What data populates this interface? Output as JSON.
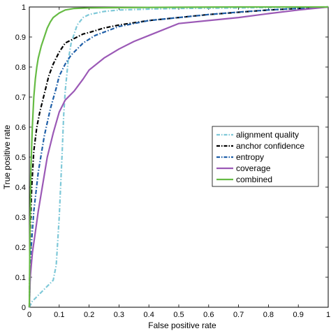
{
  "chart_data": {
    "type": "line",
    "title": "",
    "xlabel": "False positive rate",
    "ylabel": "True positive rate",
    "xlim": [
      0,
      1
    ],
    "ylim": [
      0,
      1
    ],
    "xticks": [
      "0",
      "0.1",
      "0.2",
      "0.3",
      "0.4",
      "0.5",
      "0.6",
      "0.7",
      "0.8",
      "0.9",
      "1"
    ],
    "yticks": [
      "0",
      "0.1",
      "0.2",
      "0.3",
      "0.4",
      "0.5",
      "0.6",
      "0.7",
      "0.8",
      "0.9",
      "1"
    ],
    "grid": false,
    "legend_position": "center-right",
    "series": [
      {
        "name": "alignment quality",
        "color": "#7ec8d8",
        "dash": "dash-dot",
        "x": [
          0,
          0.01,
          0.04,
          0.08,
          0.09,
          0.1,
          0.11,
          0.115,
          0.12,
          0.13,
          0.14,
          0.15,
          0.16,
          0.18,
          0.2,
          0.25,
          0.3,
          0.4,
          0.5,
          0.7,
          0.85,
          1.0
        ],
        "y": [
          0,
          0.02,
          0.05,
          0.09,
          0.14,
          0.3,
          0.52,
          0.64,
          0.72,
          0.82,
          0.88,
          0.91,
          0.94,
          0.965,
          0.975,
          0.985,
          0.99,
          0.993,
          0.995,
          0.997,
          0.999,
          1.0
        ]
      },
      {
        "name": "anchor confidence",
        "color": "#000000",
        "dash": "dash-dot",
        "x": [
          0,
          0.003,
          0.008,
          0.015,
          0.025,
          0.035,
          0.05,
          0.065,
          0.08,
          0.1,
          0.12,
          0.14,
          0.16,
          0.18,
          0.2,
          0.25,
          0.3,
          0.4,
          0.5,
          0.6,
          0.8,
          1.0
        ],
        "y": [
          0,
          0.25,
          0.4,
          0.52,
          0.6,
          0.65,
          0.71,
          0.77,
          0.81,
          0.85,
          0.88,
          0.89,
          0.9,
          0.91,
          0.915,
          0.93,
          0.94,
          0.955,
          0.965,
          0.975,
          0.99,
          1.0
        ]
      },
      {
        "name": "entropy",
        "color": "#1f5fa8",
        "dash": "dash-dot",
        "x": [
          0,
          0.005,
          0.015,
          0.03,
          0.05,
          0.07,
          0.09,
          0.1,
          0.12,
          0.14,
          0.16,
          0.18,
          0.22,
          0.26,
          0.3,
          0.35,
          0.4,
          0.5,
          0.6,
          0.7,
          0.8,
          0.9,
          1.0
        ],
        "y": [
          0,
          0.18,
          0.32,
          0.45,
          0.57,
          0.66,
          0.73,
          0.77,
          0.81,
          0.84,
          0.86,
          0.88,
          0.905,
          0.92,
          0.935,
          0.945,
          0.955,
          0.965,
          0.975,
          0.983,
          0.99,
          0.995,
          1.0
        ]
      },
      {
        "name": "coverage",
        "color": "#9b59b6",
        "dash": "solid",
        "x": [
          0,
          0.003,
          0.01,
          0.02,
          0.03,
          0.04,
          0.05,
          0.06,
          0.08,
          0.1,
          0.12,
          0.15,
          0.18,
          0.2,
          0.25,
          0.3,
          0.35,
          0.4,
          0.5,
          0.6,
          0.7,
          0.8,
          0.9,
          1.0
        ],
        "y": [
          0,
          0.1,
          0.18,
          0.25,
          0.32,
          0.38,
          0.44,
          0.5,
          0.58,
          0.65,
          0.69,
          0.72,
          0.76,
          0.79,
          0.83,
          0.86,
          0.885,
          0.905,
          0.945,
          0.955,
          0.965,
          0.978,
          0.99,
          1.0
        ]
      },
      {
        "name": "combined",
        "color": "#66bb44",
        "dash": "solid",
        "x": [
          0,
          0.002,
          0.005,
          0.01,
          0.015,
          0.02,
          0.025,
          0.03,
          0.04,
          0.05,
          0.06,
          0.07,
          0.08,
          0.1,
          0.12,
          0.15,
          0.2,
          0.3,
          0.5,
          0.7,
          1.0
        ],
        "y": [
          0,
          0.25,
          0.45,
          0.6,
          0.7,
          0.76,
          0.8,
          0.83,
          0.87,
          0.9,
          0.93,
          0.95,
          0.965,
          0.98,
          0.99,
          0.995,
          0.997,
          0.998,
          0.999,
          1.0,
          1.0
        ]
      }
    ]
  }
}
